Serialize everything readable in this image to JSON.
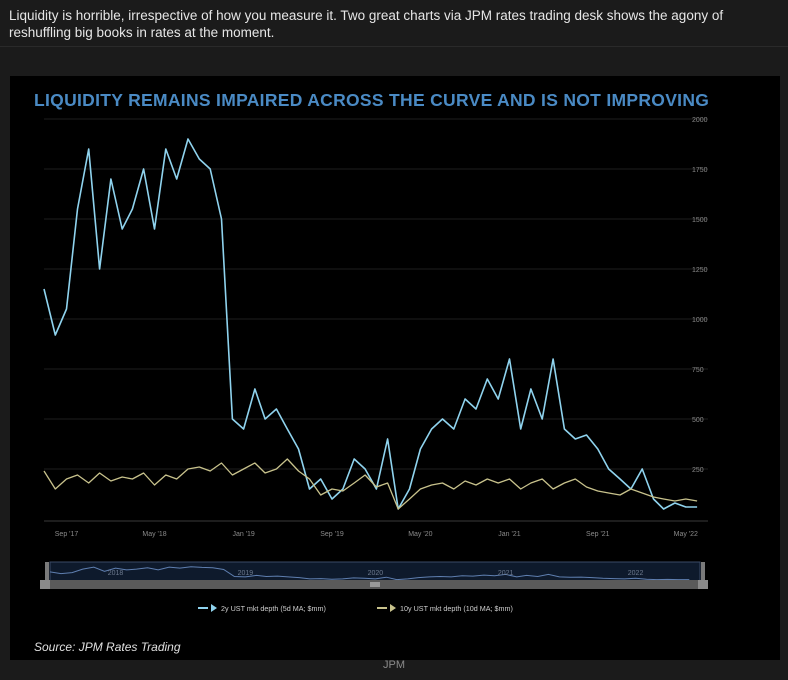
{
  "post": {
    "text": "Liquidity is horrible, irrespective of how you measure it. Two great charts via JPM rates trading desk shows the agony of reshuffling big books in rates at the moment."
  },
  "caption": "JPM",
  "colors": {
    "series_2y": "#8fd3ee",
    "series_10y": "#c8c28c",
    "title": "#4a8ac4",
    "background": "#000000"
  },
  "chart_data": {
    "type": "line",
    "title": "LIQUIDITY REMAINS IMPAIRED ACROSS THE CURVE AND IS NOT IMPROVING",
    "source": "Source: JPM Rates Trading",
    "x_tick_labels": [
      "Sep '17",
      "May '18",
      "Jan '19",
      "Sep '19",
      "May '20",
      "Jan '21",
      "Sep '21",
      "May '22"
    ],
    "x_ticks": [
      "2017-09",
      "2018-05",
      "2019-01",
      "2019-09",
      "2020-05",
      "2021-01",
      "2021-09",
      "2022-05"
    ],
    "y_tick_labels": [
      "250",
      "500",
      "750",
      "1000",
      "1250",
      "1500",
      "1750",
      "2000"
    ],
    "ylim": [
      0,
      2000
    ],
    "grid": true,
    "legend_position": "bottom",
    "navigator_labels": [
      "2018",
      "2019",
      "2020",
      "2021",
      "2022"
    ],
    "series": [
      {
        "name": "2y UST mkt depth (5d MA; $mm)",
        "x": [
          "2017-07",
          "2017-08",
          "2017-09",
          "2017-10",
          "2017-11",
          "2017-12",
          "2018-01",
          "2018-02",
          "2018-03",
          "2018-04",
          "2018-05",
          "2018-06",
          "2018-07",
          "2018-08",
          "2018-09",
          "2018-10",
          "2018-11",
          "2018-12",
          "2019-01",
          "2019-02",
          "2019-03",
          "2019-04",
          "2019-05",
          "2019-06",
          "2019-07",
          "2019-08",
          "2019-09",
          "2019-10",
          "2019-11",
          "2019-12",
          "2020-01",
          "2020-02",
          "2020-03",
          "2020-04",
          "2020-05",
          "2020-06",
          "2020-07",
          "2020-08",
          "2020-09",
          "2020-10",
          "2020-11",
          "2020-12",
          "2021-01",
          "2021-02",
          "2021-03",
          "2021-04",
          "2021-05",
          "2021-06",
          "2021-07",
          "2021-08",
          "2021-09",
          "2021-10",
          "2021-11",
          "2021-12",
          "2022-01",
          "2022-02",
          "2022-03",
          "2022-04",
          "2022-05",
          "2022-06"
        ],
        "values": [
          1150,
          920,
          1050,
          1550,
          1850,
          1250,
          1700,
          1450,
          1550,
          1750,
          1450,
          1850,
          1700,
          1900,
          1800,
          1750,
          1500,
          500,
          450,
          650,
          500,
          550,
          450,
          350,
          150,
          200,
          100,
          150,
          300,
          250,
          150,
          400,
          50,
          150,
          350,
          450,
          500,
          450,
          600,
          550,
          700,
          600,
          800,
          450,
          650,
          500,
          800,
          450,
          400,
          420,
          350,
          250,
          200,
          150,
          250,
          100,
          50,
          80,
          60,
          60
        ]
      },
      {
        "name": "10y UST mkt depth (10d MA; $mm)",
        "x": [
          "2017-07",
          "2017-08",
          "2017-09",
          "2017-10",
          "2017-11",
          "2017-12",
          "2018-01",
          "2018-02",
          "2018-03",
          "2018-04",
          "2018-05",
          "2018-06",
          "2018-07",
          "2018-08",
          "2018-09",
          "2018-10",
          "2018-11",
          "2018-12",
          "2019-01",
          "2019-02",
          "2019-03",
          "2019-04",
          "2019-05",
          "2019-06",
          "2019-07",
          "2019-08",
          "2019-09",
          "2019-10",
          "2019-11",
          "2019-12",
          "2020-01",
          "2020-02",
          "2020-03",
          "2020-04",
          "2020-05",
          "2020-06",
          "2020-07",
          "2020-08",
          "2020-09",
          "2020-10",
          "2020-11",
          "2020-12",
          "2021-01",
          "2021-02",
          "2021-03",
          "2021-04",
          "2021-05",
          "2021-06",
          "2021-07",
          "2021-08",
          "2021-09",
          "2021-10",
          "2021-11",
          "2021-12",
          "2022-01",
          "2022-02",
          "2022-03",
          "2022-04",
          "2022-05",
          "2022-06"
        ],
        "values": [
          240,
          150,
          200,
          220,
          180,
          230,
          190,
          210,
          200,
          230,
          170,
          220,
          200,
          250,
          260,
          240,
          280,
          220,
          250,
          280,
          230,
          250,
          300,
          240,
          200,
          120,
          150,
          140,
          180,
          220,
          160,
          180,
          50,
          100,
          150,
          170,
          180,
          150,
          190,
          170,
          200,
          180,
          200,
          150,
          180,
          200,
          150,
          180,
          200,
          160,
          140,
          130,
          120,
          150,
          130,
          110,
          100,
          90,
          100,
          90
        ]
      }
    ]
  }
}
